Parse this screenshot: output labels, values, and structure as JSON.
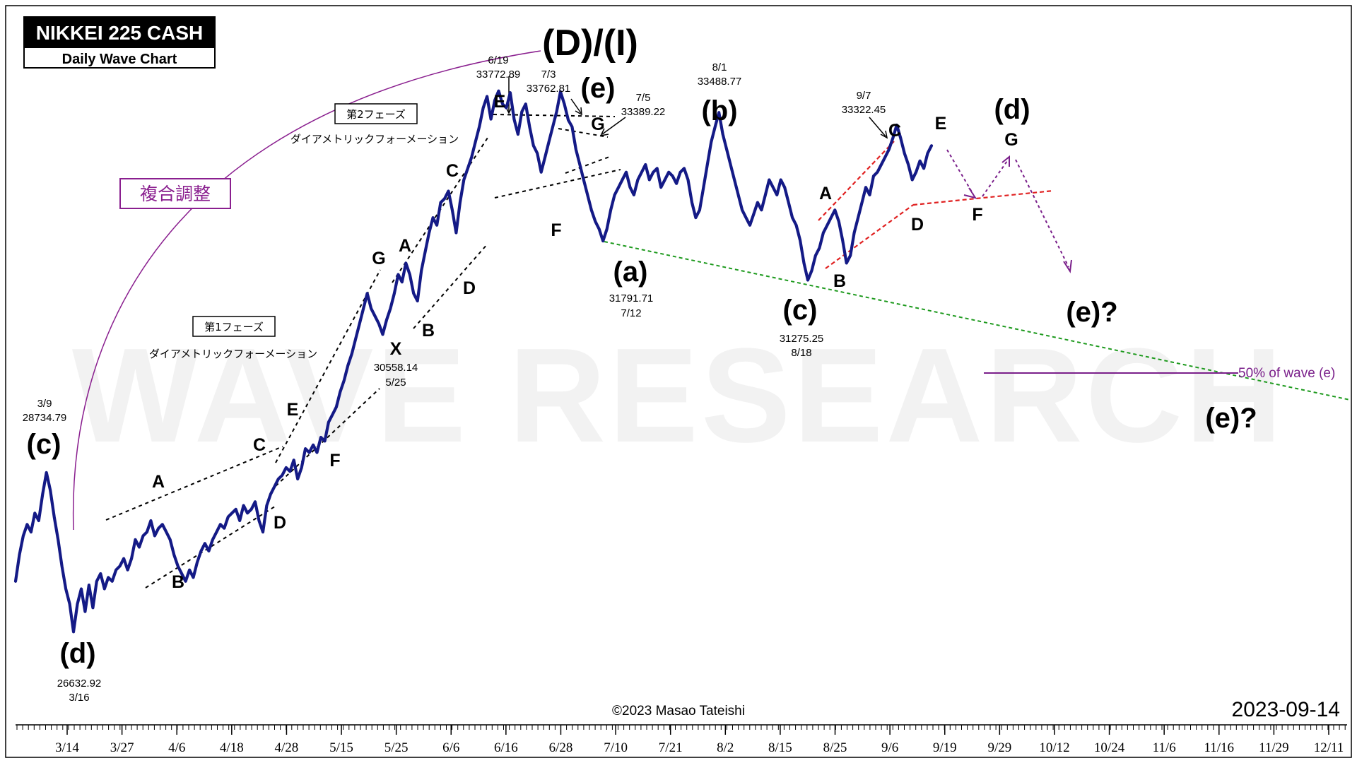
{
  "title": "NIKKEI 225 CASH",
  "subtitle": "Daily Wave Chart",
  "date_stamp": "2023-09-14",
  "copyright": "©2023 Masao Tateishi",
  "watermark": "WAVE RESEARCH",
  "phase_box_1": "第1フェーズ",
  "phase_box_2": "第2フェーズ",
  "formation_label_1": "ダイアメトリックフォーメーション",
  "formation_label_2": "ダイアメトリックフォーメーション",
  "complex_correction_label": "複合調整",
  "fifty_pct_label": "50% of wave (e)",
  "colors": {
    "price_line": "#141a86",
    "support_line": "#1e9a1e",
    "triangle_lines": "#e02020",
    "projection": "#7a1f8a",
    "annotation_box": "#8a1f8f"
  },
  "chart_data": {
    "type": "line",
    "title": "NIKKEI 225 CASH",
    "subtitle": "Daily Wave Chart",
    "xlabel": "",
    "ylabel": "",
    "x_tick_labels": [
      "3/14",
      "3/27",
      "4/6",
      "4/18",
      "4/28",
      "5/15",
      "5/25",
      "6/6",
      "6/16",
      "6/28",
      "7/10",
      "7/21",
      "8/2",
      "8/15",
      "8/25",
      "9/6",
      "9/19",
      "9/29",
      "10/12",
      "10/24",
      "11/6",
      "11/16",
      "11/29",
      "12/11"
    ],
    "ylim": [
      26300,
      34600
    ],
    "grid": false,
    "series": [
      {
        "values": [
          27300,
          27650,
          27900,
          28050,
          27950,
          28200,
          28100,
          28450,
          28734.79,
          28500,
          28150,
          27850,
          27500,
          27200,
          27000,
          26632.92,
          27000,
          27200,
          26900,
          27250,
          26950,
          27300,
          27400,
          27200,
          27350,
          27300,
          27450,
          27500,
          27600,
          27450,
          27600,
          27850,
          27750,
          27900,
          27950,
          28100,
          27900,
          28000,
          28050,
          27950,
          27850,
          27650,
          27500,
          27400,
          27300,
          27450,
          27350,
          27550,
          27700,
          27800,
          27700,
          27850,
          27950,
          28050,
          28000,
          28150,
          28200,
          28250,
          28100,
          28300,
          28200,
          28250,
          28350,
          28100,
          27950,
          28300,
          28450,
          28550,
          28650,
          28700,
          28800,
          28750,
          28900,
          28650,
          28800,
          29050,
          29000,
          29100,
          29000,
          29200,
          29150,
          29400,
          29500,
          29600,
          29800,
          29950,
          30150,
          30300,
          30500,
          30700,
          30900,
          31100,
          30900,
          30800,
          30700,
          30558.14,
          30750,
          30900,
          31100,
          31350,
          31250,
          31500,
          31350,
          31100,
          31000,
          31400,
          31650,
          31900,
          32100,
          32000,
          32300,
          32350,
          32450,
          32200,
          31900,
          32300,
          32600,
          32750,
          32900,
          33100,
          33300,
          33550,
          33700,
          33400,
          33650,
          33772.89,
          33600,
          33550,
          33750,
          33400,
          33200,
          33500,
          33600,
          33300,
          33050,
          32950,
          32700,
          32900,
          33100,
          33300,
          33500,
          33762.81,
          33600,
          33389.22,
          33300,
          33000,
          32800,
          32600,
          32400,
          32200,
          32050,
          31950,
          31791.71,
          31950,
          32200,
          32400,
          32500,
          32600,
          32700,
          32500,
          32400,
          32600,
          32700,
          32800,
          32600,
          32700,
          32750,
          32500,
          32600,
          32700,
          32650,
          32550,
          32700,
          32750,
          32600,
          32300,
          32100,
          32200,
          32500,
          32800,
          33100,
          33300,
          33488.77,
          33200,
          33000,
          32800,
          32600,
          32400,
          32200,
          32100,
          32000,
          32150,
          32300,
          32200,
          32400,
          32600,
          32500,
          32400,
          32600,
          32500,
          32300,
          32100,
          32000,
          31800,
          31500,
          31275.25,
          31400,
          31600,
          31700,
          31900,
          32000,
          32100,
          32200,
          32050,
          31800,
          31500,
          31600,
          31900,
          32100,
          32300,
          32500,
          32400,
          32650,
          32700,
          32800,
          32900,
          33000,
          33150,
          33322.45,
          33150,
          32950,
          32800,
          32600,
          32700,
          32850,
          32750,
          32950,
          33050
        ]
      }
    ],
    "projection": {
      "points": [
        "E",
        "F",
        "G"
      ],
      "next": "(e)?"
    }
  },
  "wave_labels": {
    "top": "(D)/(I)",
    "c_start": "(c)",
    "d_start": "(d)",
    "a_mid": "(a)",
    "b_mid": "(b)",
    "c_mid": "(c)",
    "d_proj": "(d)",
    "e_top": "(e)",
    "e_q1": "(e)?",
    "e_q2": "(e)?",
    "p1": [
      "A",
      "B",
      "C",
      "D",
      "E",
      "F",
      "G"
    ],
    "x": "X",
    "p2": [
      "A",
      "B",
      "C",
      "D",
      "E",
      "F",
      "G"
    ],
    "tri": [
      "A",
      "B",
      "C",
      "D",
      "E",
      "F",
      "G"
    ]
  },
  "annotations": [
    {
      "date": "3/9",
      "value": "28734.79"
    },
    {
      "date": "3/16",
      "value": "26632.92"
    },
    {
      "date": "5/25",
      "value": "30558.14"
    },
    {
      "date": "6/19",
      "value": "33772.89"
    },
    {
      "date": "7/3",
      "value": "33762.81"
    },
    {
      "date": "7/5",
      "value": "33389.22"
    },
    {
      "date": "7/12",
      "value": "31791.71"
    },
    {
      "date": "8/1",
      "value": "33488.77"
    },
    {
      "date": "8/18",
      "value": "31275.25"
    },
    {
      "date": "9/7",
      "value": "33322.45"
    }
  ]
}
